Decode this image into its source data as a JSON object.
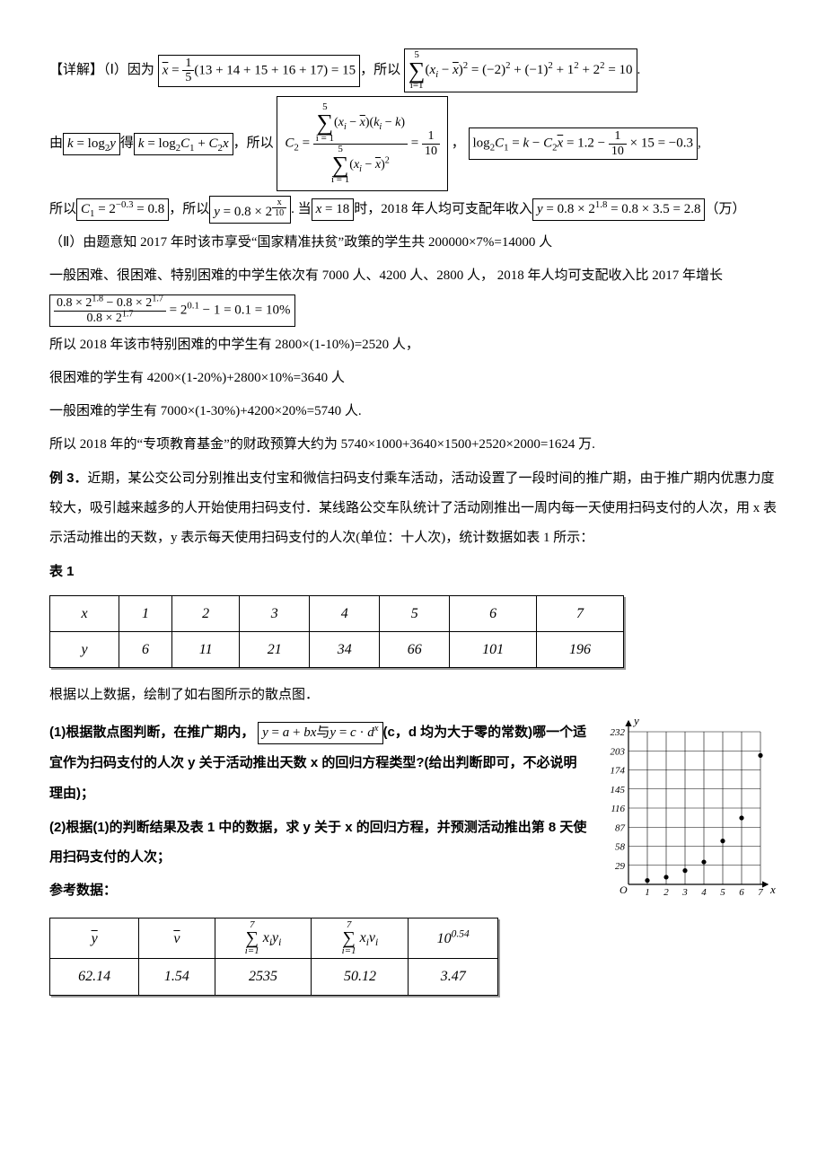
{
  "p1_pre": "【详解】（Ⅰ）因为",
  "eq1": "x̄ = (1/5)(13 + 14 + 15 + 16 + 17) = 15",
  "p1_mid": "，所以",
  "eq2": "Σ_{i=1}^{5}(x_i − x̄)^2 = (−2)^2 + (−1)^2 + 1^2 + 2^2 = 10",
  "eq2_end": ".",
  "p2_pre": "由",
  "eq3": "k = log₂y",
  "p2_mid1": "得",
  "eq4": "k = log₂C₁ + C₂x",
  "p2_mid2": "，所以",
  "eq5_label": "C₂ = [Σ(x_i−x̄)(k_i−k)] / [Σ(x_i−x̄)^2] = 1/10",
  "p2_mid3": "，",
  "eq6": "log₂C₁ = k − C₂x̄ = 1.2 − (1/10)×15 = −0.3",
  "eq6_end": ",",
  "p3_pre": "所以",
  "eq7": "C₁ = 2^{−0.3} = 0.8",
  "p3_mid1": "，所以",
  "eq8": "y = 0.8 × 2^{x/10}",
  "p3_mid2": ". 当",
  "eq9": "x = 18",
  "p3_mid3": "时，2018 年人均可支配年收入",
  "eq10": "y = 0.8 × 2^{1.8} = 0.8 × 3.5 = 2.8",
  "p3_end": "（万）",
  "p4": "（Ⅱ）由题意知 2017 年时该市享受“国家精准扶贫”政策的学生共 200000×7%=14000 人",
  "p5": "一般困难、很困难、特别困难的中学生依次有 7000 人、4200 人、2800 人，  2018 年人均可支配收入比 2017 年增长",
  "eq11_num": "0.8 × 2^{1.8} − 0.8 × 2^{1.7}",
  "eq11_den": "0.8 × 2^{1.7}",
  "eq11_rest": " = 2^{0.1} − 1 = 0.1 = 10%",
  "p6": "所以 2018 年该市特别困难的中学生有 2800×(1-10%)=2520 人，",
  "p7": "很困难的学生有 4200×(1-20%)+2800×10%=3640 人",
  "p8": "一般困难的学生有 7000×(1-30%)+4200×20%=5740 人.",
  "p9": "所以 2018 年的“专项教育基金”的财政预算大约为 5740×1000+3640×1500+2520×2000=1624 万.",
  "ex3_label": "例 3．",
  "ex3_p1": "近期，某公交公司分别推出支付宝和微信扫码支付乘车活动，活动设置了一段时间的推广期，由于推广期内优惠力度较大，吸引越来越多的人开始使用扫码支付．某线路公交车队统计了活动刚推出一周内每一天使用扫码支付的人次，用 x 表示活动推出的天数，y 表示每天使用扫码支付的人次(单位：十人次)，统计数据如表 1 所示：",
  "tbl1_label": "表 1",
  "table1": {
    "rows": [
      [
        "x",
        "1",
        "2",
        "3",
        "4",
        "5",
        "6",
        "7"
      ],
      [
        "y",
        "6",
        "11",
        "21",
        "34",
        "66",
        "101",
        "196"
      ]
    ]
  },
  "p10": "根据以上数据，绘制了如右图所示的散点图．",
  "q1_lead": "(1)根据散点图判断，在推广期内，",
  "q1_eq": "y = a + bx 与 y = c · d^x",
  "q1_tail": "(c，d 均为大于零的常数)哪一个适宜作为扫码支付的人次 y 关于活动推出天数 x 的回归方程类型?(给出判断即可，不必说明理由)；",
  "q2": "(2)根据(1)的判断结果及表 1 中的数据，求 y 关于 x 的回归方程，并预测活动推出第 8 天使用扫码支付的人次；",
  "ref_label": "参考数据：",
  "table2": {
    "headers": [
      "ȳ",
      "v̄",
      "Σ_{i=1}^{7} x_i y_i",
      "Σ_{i=1}^{7} x_i v_i",
      "10^{0.54}"
    ],
    "values": [
      "62.14",
      "1.54",
      "2535",
      "50.12",
      "3.47"
    ]
  },
  "scatter": {
    "yticks": [
      29,
      58,
      87,
      116,
      145,
      174,
      203,
      232
    ],
    "xticks": [
      1,
      2,
      3,
      4,
      5,
      6,
      7
    ],
    "points": [
      [
        1,
        6
      ],
      [
        2,
        11
      ],
      [
        3,
        21
      ],
      [
        4,
        34
      ],
      [
        5,
        66
      ],
      [
        6,
        101
      ],
      [
        7,
        196
      ]
    ]
  }
}
